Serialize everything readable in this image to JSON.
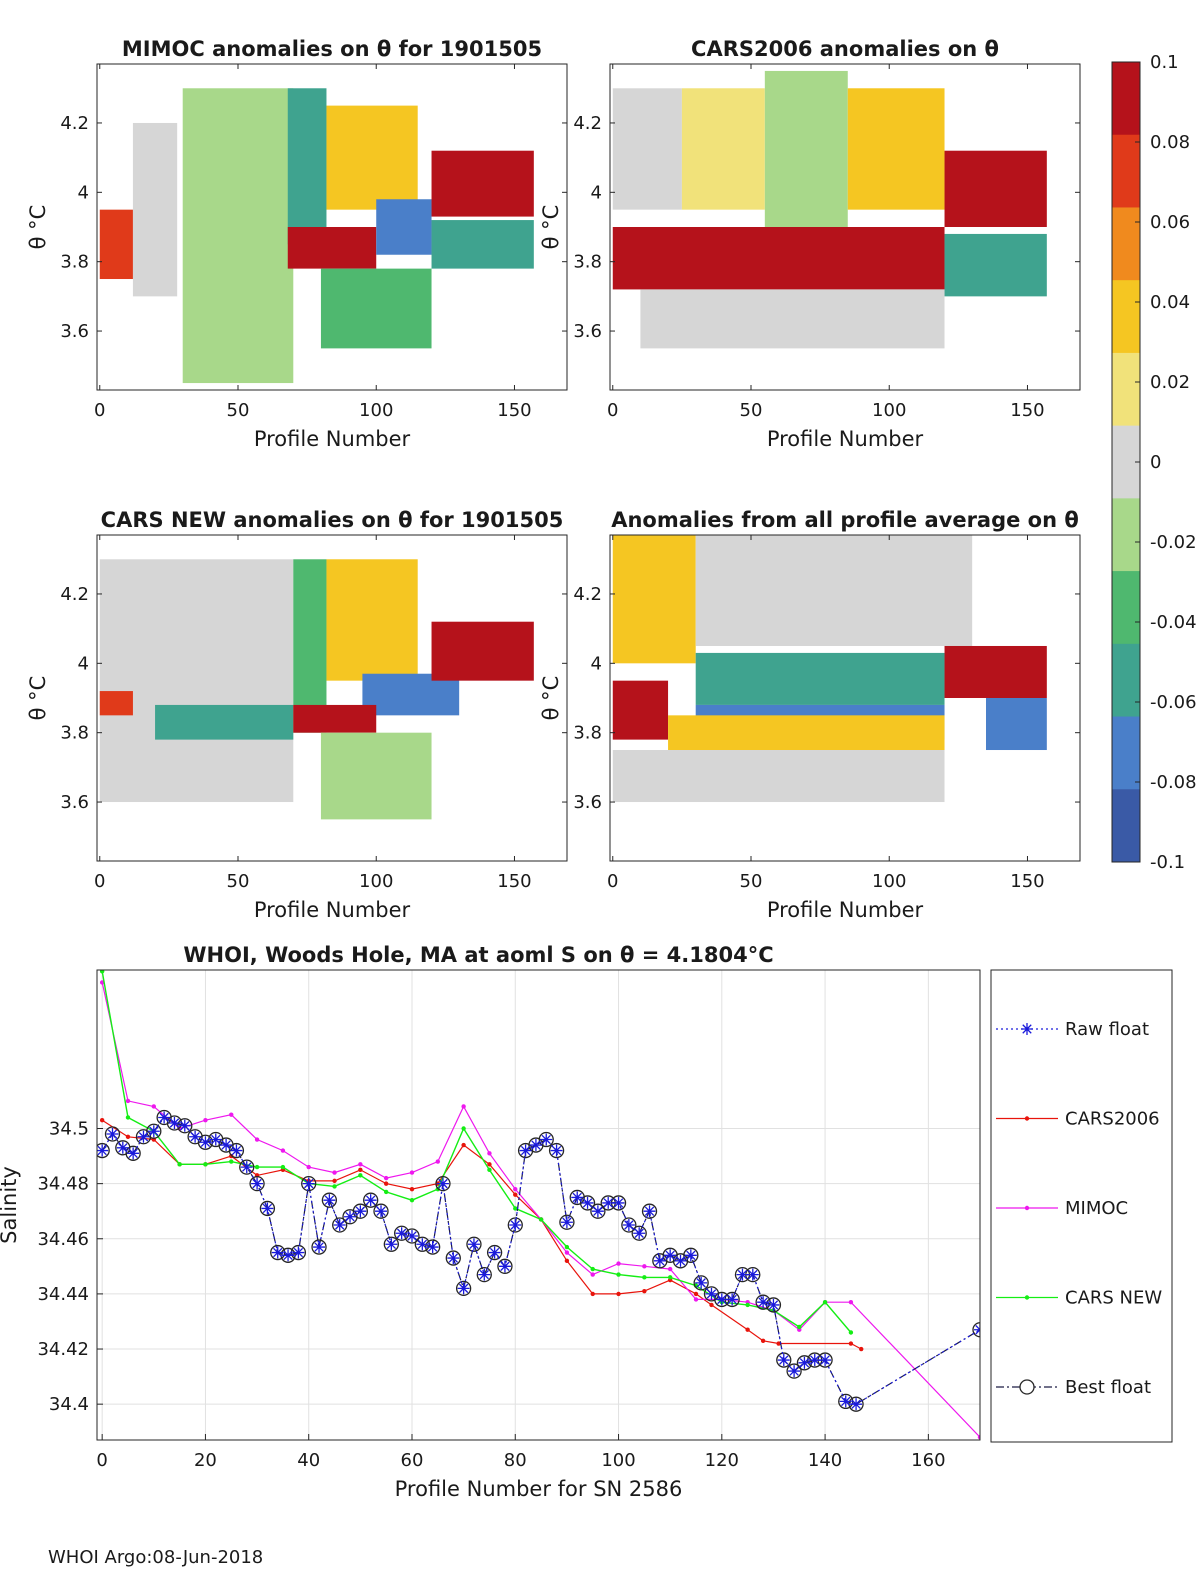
{
  "footer": "WHOI Argo:08-Jun-2018",
  "colorbar": {
    "ticks": [
      "0.1",
      "0.08",
      "0.06",
      "0.04",
      "0.02",
      "0",
      "-0.02",
      "-0.04",
      "-0.06",
      "-0.08",
      "-0.1"
    ],
    "range": [
      -0.1,
      0.1
    ],
    "colors": [
      "#3a5aa6",
      "#4a7fc9",
      "#3fa38f",
      "#4fb86f",
      "#a8d88a",
      "#d6d6d6",
      "#f1e27a",
      "#f5c622",
      "#f08a1e",
      "#e03a1a",
      "#b5121b"
    ]
  },
  "chart_data": [
    {
      "type": "heatmap",
      "title": "MIMOC anomalies on θ  for 1901505",
      "xlabel": "Profile Number",
      "ylabel": "θ °C",
      "xlim": [
        -1,
        169
      ],
      "ylim": [
        3.43,
        4.37
      ],
      "xticks": [
        "0",
        "50",
        "100",
        "150"
      ],
      "yticks": [
        "3.6",
        "3.8",
        "4",
        "4.2"
      ],
      "bands": [
        {
          "x": [
            0,
            12
          ],
          "y": [
            3.75,
            3.95
          ],
          "value": 0.07
        },
        {
          "x": [
            12,
            28
          ],
          "y": [
            3.7,
            4.2
          ],
          "value": -0.01
        },
        {
          "x": [
            30,
            70
          ],
          "y": [
            3.45,
            4.3
          ],
          "value": -0.03
        },
        {
          "x": [
            68,
            82
          ],
          "y": [
            3.85,
            4.3
          ],
          "value": -0.07
        },
        {
          "x": [
            82,
            115
          ],
          "y": [
            3.95,
            4.25
          ],
          "value": 0.03
        },
        {
          "x": [
            68,
            100
          ],
          "y": [
            3.78,
            3.9
          ],
          "value": 0.1
        },
        {
          "x": [
            100,
            120
          ],
          "y": [
            3.82,
            3.98
          ],
          "value": -0.09
        },
        {
          "x": [
            120,
            157
          ],
          "y": [
            3.93,
            4.12
          ],
          "value": 0.1
        },
        {
          "x": [
            120,
            157
          ],
          "y": [
            3.78,
            3.92
          ],
          "value": -0.07
        },
        {
          "x": [
            80,
            120
          ],
          "y": [
            3.55,
            3.78
          ],
          "value": -0.04
        }
      ]
    },
    {
      "type": "heatmap",
      "title": "CARS2006 anomalies on θ",
      "xlabel": "Profile Number",
      "ylabel": "θ °C",
      "xlim": [
        -1,
        169
      ],
      "ylim": [
        3.43,
        4.37
      ],
      "xticks": [
        "0",
        "50",
        "100",
        "150"
      ],
      "yticks": [
        "3.6",
        "3.8",
        "4",
        "4.2"
      ],
      "bands": [
        {
          "x": [
            0,
            25
          ],
          "y": [
            3.95,
            4.3
          ],
          "value": 0.0
        },
        {
          "x": [
            25,
            55
          ],
          "y": [
            3.95,
            4.3
          ],
          "value": 0.02
        },
        {
          "x": [
            55,
            85
          ],
          "y": [
            3.9,
            4.35
          ],
          "value": -0.03
        },
        {
          "x": [
            85,
            120
          ],
          "y": [
            3.95,
            4.3
          ],
          "value": 0.03
        },
        {
          "x": [
            0,
            120
          ],
          "y": [
            3.72,
            3.9
          ],
          "value": 0.1
        },
        {
          "x": [
            120,
            157
          ],
          "y": [
            3.9,
            4.12
          ],
          "value": 0.1
        },
        {
          "x": [
            120,
            157
          ],
          "y": [
            3.7,
            3.88
          ],
          "value": -0.07
        },
        {
          "x": [
            10,
            120
          ],
          "y": [
            3.55,
            3.72
          ],
          "value": 0.0
        }
      ]
    },
    {
      "type": "heatmap",
      "title": "CARS NEW anomalies on θ for 1901505",
      "xlabel": "Profile Number",
      "ylabel": "θ °C",
      "xlim": [
        -1,
        169
      ],
      "ylim": [
        3.43,
        4.37
      ],
      "xticks": [
        "0",
        "50",
        "100",
        "150"
      ],
      "yticks": [
        "3.6",
        "3.8",
        "4",
        "4.2"
      ],
      "bands": [
        {
          "x": [
            0,
            70
          ],
          "y": [
            3.6,
            4.3
          ],
          "value": -0.01
        },
        {
          "x": [
            0,
            12
          ],
          "y": [
            3.85,
            3.92
          ],
          "value": 0.08
        },
        {
          "x": [
            20,
            70
          ],
          "y": [
            3.78,
            3.88
          ],
          "value": -0.07
        },
        {
          "x": [
            70,
            82
          ],
          "y": [
            3.8,
            4.3
          ],
          "value": -0.04
        },
        {
          "x": [
            82,
            115
          ],
          "y": [
            3.95,
            4.3
          ],
          "value": 0.03
        },
        {
          "x": [
            95,
            130
          ],
          "y": [
            3.85,
            3.97
          ],
          "value": -0.09
        },
        {
          "x": [
            120,
            157
          ],
          "y": [
            3.95,
            4.12
          ],
          "value": 0.1
        },
        {
          "x": [
            70,
            100
          ],
          "y": [
            3.8,
            3.88
          ],
          "value": 0.1
        },
        {
          "x": [
            80,
            120
          ],
          "y": [
            3.55,
            3.8
          ],
          "value": -0.03
        }
      ]
    },
    {
      "type": "heatmap",
      "title": "Anomalies from all profile average on θ",
      "xlabel": "Profile Number",
      "ylabel": "θ °C",
      "xlim": [
        -1,
        169
      ],
      "ylim": [
        3.43,
        4.37
      ],
      "xticks": [
        "0",
        "50",
        "100",
        "150"
      ],
      "yticks": [
        "3.6",
        "3.8",
        "4",
        "4.2"
      ],
      "bands": [
        {
          "x": [
            0,
            30
          ],
          "y": [
            4.0,
            4.37
          ],
          "value": 0.03
        },
        {
          "x": [
            30,
            130
          ],
          "y": [
            4.05,
            4.37
          ],
          "value": 0.0
        },
        {
          "x": [
            30,
            120
          ],
          "y": [
            3.88,
            4.03
          ],
          "value": -0.07
        },
        {
          "x": [
            30,
            120
          ],
          "y": [
            3.78,
            3.88
          ],
          "value": -0.09
        },
        {
          "x": [
            0,
            20
          ],
          "y": [
            3.78,
            3.95
          ],
          "value": 0.1
        },
        {
          "x": [
            20,
            120
          ],
          "y": [
            3.75,
            3.85
          ],
          "value": 0.04
        },
        {
          "x": [
            120,
            157
          ],
          "y": [
            3.9,
            4.05
          ],
          "value": 0.1
        },
        {
          "x": [
            135,
            157
          ],
          "y": [
            3.75,
            3.9
          ],
          "value": -0.09
        },
        {
          "x": [
            0,
            120
          ],
          "y": [
            3.6,
            3.75
          ],
          "value": 0.0
        }
      ]
    },
    {
      "type": "line",
      "title": "WHOI, Woods Hole, MA at aoml S on θ = 4.1804°C",
      "xlabel": "Profile Number for SN 2586",
      "ylabel": "Salinity",
      "xlim": [
        -1,
        170
      ],
      "ylim": [
        34.387,
        34.5575
      ],
      "xticks": [
        "0",
        "20",
        "40",
        "60",
        "80",
        "100",
        "120",
        "140",
        "160"
      ],
      "yticks": [
        "34.4",
        "34.42",
        "34.44",
        "34.46",
        "34.48",
        "34.5"
      ],
      "grid": true,
      "legend_position": "outside-right",
      "series": [
        {
          "name": "Raw float",
          "style": "blue dotted with stars",
          "x": [
            0,
            2,
            4,
            6,
            8,
            10,
            12,
            14,
            16,
            18,
            20,
            22,
            24,
            26,
            28,
            30,
            32,
            34,
            36,
            38,
            40,
            42,
            44,
            46,
            48,
            50,
            52,
            54,
            56,
            58,
            60,
            62,
            64,
            66,
            68,
            70,
            72,
            74,
            76,
            78,
            80,
            82,
            84,
            86,
            88,
            90,
            92,
            94,
            96,
            98,
            100,
            102,
            104,
            106,
            108,
            110,
            112,
            114,
            116,
            118,
            120,
            122,
            124,
            126,
            128,
            130,
            132,
            134,
            136,
            138,
            140,
            144,
            146,
            170
          ],
          "y": [
            34.492,
            34.498,
            34.493,
            34.491,
            34.497,
            34.499,
            34.504,
            34.502,
            34.501,
            34.497,
            34.495,
            34.496,
            34.494,
            34.492,
            34.486,
            34.48,
            34.471,
            34.455,
            34.454,
            34.455,
            34.48,
            34.457,
            34.474,
            34.465,
            34.468,
            34.47,
            34.474,
            34.47,
            34.458,
            34.462,
            34.461,
            34.458,
            34.457,
            34.48,
            34.453,
            34.442,
            34.458,
            34.447,
            34.455,
            34.45,
            34.465,
            34.492,
            34.494,
            34.496,
            34.492,
            34.466,
            34.475,
            34.473,
            34.47,
            34.473,
            34.473,
            34.465,
            34.462,
            34.47,
            34.452,
            34.454,
            34.452,
            34.454,
            34.444,
            34.44,
            34.438,
            34.438,
            34.447,
            34.447,
            34.437,
            34.436,
            34.416,
            34.412,
            34.415,
            34.416,
            34.416,
            34.401,
            34.4,
            34.427
          ]
        },
        {
          "name": "CARS2006",
          "style": "red solid with dots",
          "x": [
            0,
            5,
            10,
            15,
            20,
            25,
            30,
            35,
            40,
            45,
            50,
            55,
            60,
            65,
            70,
            75,
            80,
            85,
            90,
            95,
            100,
            105,
            110,
            115,
            118,
            125,
            128,
            131,
            145,
            147
          ],
          "y": [
            34.503,
            34.497,
            34.496,
            34.487,
            34.487,
            34.49,
            34.483,
            34.485,
            34.481,
            34.481,
            34.485,
            34.48,
            34.478,
            34.48,
            34.494,
            34.487,
            34.476,
            34.467,
            34.452,
            34.44,
            34.44,
            34.441,
            34.445,
            34.44,
            34.436,
            34.427,
            34.423,
            34.422,
            34.422,
            34.42
          ]
        },
        {
          "name": "MIMOC",
          "style": "magenta solid with dots",
          "x": [
            0,
            5,
            10,
            15,
            20,
            25,
            30,
            35,
            40,
            45,
            50,
            55,
            60,
            65,
            70,
            75,
            80,
            85,
            90,
            95,
            100,
            105,
            110,
            115,
            120,
            125,
            130,
            135,
            140,
            145,
            170
          ],
          "y": [
            34.553,
            34.51,
            34.508,
            34.5,
            34.503,
            34.505,
            34.496,
            34.492,
            34.486,
            34.484,
            34.487,
            34.482,
            34.484,
            34.488,
            34.508,
            34.491,
            34.478,
            34.467,
            34.455,
            34.447,
            34.451,
            34.45,
            34.449,
            34.438,
            34.438,
            34.437,
            34.434,
            34.427,
            34.437,
            34.437,
            34.388
          ]
        },
        {
          "name": "CARS NEW",
          "style": "green solid with dots",
          "x": [
            0,
            5,
            10,
            15,
            20,
            25,
            30,
            35,
            40,
            45,
            50,
            55,
            60,
            65,
            70,
            75,
            80,
            85,
            90,
            95,
            100,
            105,
            110,
            115,
            120,
            125,
            130,
            135,
            140,
            145
          ],
          "y": [
            34.557,
            34.504,
            34.499,
            34.487,
            34.487,
            34.488,
            34.486,
            34.486,
            34.48,
            34.479,
            34.483,
            34.477,
            34.474,
            34.478,
            34.5,
            34.485,
            34.471,
            34.467,
            34.457,
            34.449,
            34.447,
            34.446,
            34.446,
            34.443,
            34.437,
            34.436,
            34.434,
            34.428,
            34.437,
            34.426
          ]
        },
        {
          "name": "Best float",
          "style": "black dash-dot with open circles",
          "x": [
            0,
            2,
            4,
            6,
            8,
            10,
            12,
            14,
            16,
            18,
            20,
            22,
            24,
            26,
            28,
            30,
            32,
            34,
            36,
            38,
            40,
            42,
            44,
            46,
            48,
            50,
            52,
            54,
            56,
            58,
            60,
            62,
            64,
            66,
            68,
            70,
            72,
            74,
            76,
            78,
            80,
            82,
            84,
            86,
            88,
            90,
            92,
            94,
            96,
            98,
            100,
            102,
            104,
            106,
            108,
            110,
            112,
            114,
            116,
            118,
            120,
            122,
            124,
            126,
            128,
            130,
            132,
            134,
            136,
            138,
            140,
            144,
            146,
            170
          ],
          "y": [
            34.492,
            34.498,
            34.493,
            34.491,
            34.497,
            34.499,
            34.504,
            34.502,
            34.501,
            34.497,
            34.495,
            34.496,
            34.494,
            34.492,
            34.486,
            34.48,
            34.471,
            34.455,
            34.454,
            34.455,
            34.48,
            34.457,
            34.474,
            34.465,
            34.468,
            34.47,
            34.474,
            34.47,
            34.458,
            34.462,
            34.461,
            34.458,
            34.457,
            34.48,
            34.453,
            34.442,
            34.458,
            34.447,
            34.455,
            34.45,
            34.465,
            34.492,
            34.494,
            34.496,
            34.492,
            34.466,
            34.475,
            34.473,
            34.47,
            34.473,
            34.473,
            34.465,
            34.462,
            34.47,
            34.452,
            34.454,
            34.452,
            34.454,
            34.444,
            34.44,
            34.438,
            34.438,
            34.447,
            34.447,
            34.437,
            34.436,
            34.416,
            34.412,
            34.415,
            34.416,
            34.416,
            34.401,
            34.4,
            34.427
          ]
        }
      ]
    }
  ]
}
